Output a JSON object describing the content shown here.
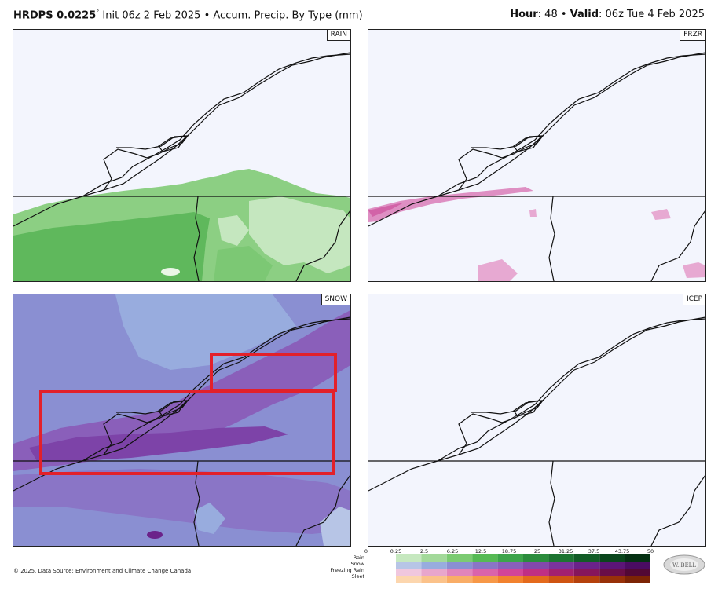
{
  "header": {
    "model": "HRDPS 0.0225",
    "degree": "°",
    "init": " Init 06z 2 Feb 2025",
    "sep1": " • ",
    "product": "Accum. Precip. By Type (mm)",
    "hour_label": "Hour",
    "hour_value": ": 48",
    "sep2": " • ",
    "valid_label": "Valid",
    "valid_value": ": 06z Tue 4 Feb 2025"
  },
  "panels": [
    {
      "id": "rain",
      "label": "RAIN"
    },
    {
      "id": "frzr",
      "label": "FRZR"
    },
    {
      "id": "snow",
      "label": "SNOW"
    },
    {
      "id": "icep",
      "label": "ICEP"
    }
  ],
  "legend": {
    "ticks": [
      "0",
      "0.25",
      "2.5",
      "6.25",
      "12.5",
      "18.75",
      "25",
      "31.25",
      "37.5",
      "43.75",
      "50"
    ],
    "rows": [
      "Rain",
      "Snow",
      "Freezing Rain",
      "Sleet"
    ],
    "colors": {
      "rain": [
        "#c6e8bf",
        "#a3d99a",
        "#7ccb72",
        "#56ba54",
        "#3da44a",
        "#2b8c3c",
        "#1d7431",
        "#125c26",
        "#0a461c",
        "#053113"
      ],
      "snow": [
        "#b7c5e6",
        "#98acde",
        "#8a8fd2",
        "#8a75c6",
        "#8a5fba",
        "#8348ac",
        "#7a339c",
        "#6b228a",
        "#5b1577",
        "#4a0c63"
      ],
      "frzr": [
        "#f0c7de",
        "#e8a6cc",
        "#e184bb",
        "#da63aa",
        "#d24598",
        "#c02f84",
        "#a3206f",
        "#86165b",
        "#6a0e47",
        "#520835"
      ],
      "sleet": [
        "#fcd6ae",
        "#fbc28a",
        "#f9ad67",
        "#f79847",
        "#f2822e",
        "#e46a1c",
        "#cf5412",
        "#b5410c",
        "#983108",
        "#7c2405"
      ]
    }
  },
  "footer": {
    "credit": "© 2025. Data Source: Environment and Climate Change Canada."
  },
  "logo_text": "WeatherBELL",
  "annotations": [
    {
      "type": "box",
      "color": "#e3202a",
      "panel": "snow"
    },
    {
      "type": "box",
      "color": "#e3202a",
      "panel": "snow"
    }
  ]
}
